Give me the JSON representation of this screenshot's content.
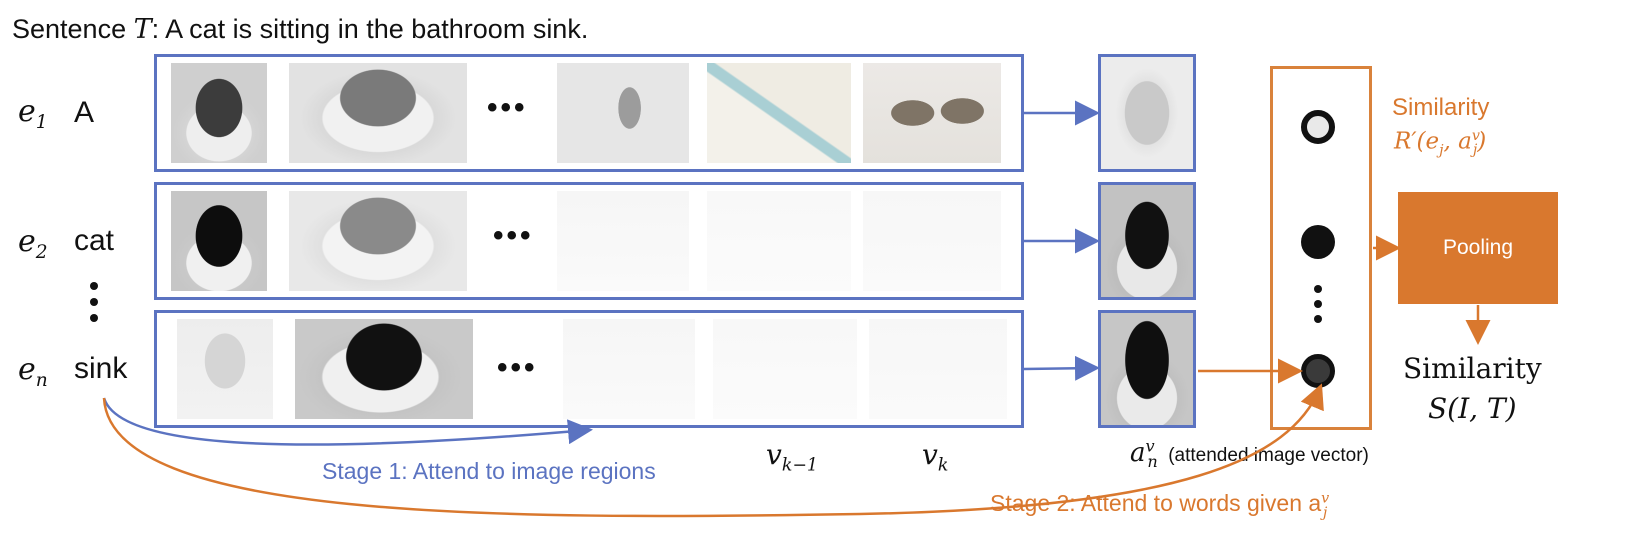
{
  "sentence": {
    "prefix": "Sentence ",
    "var": "T",
    "text": ": A cat is sitting in the bathroom sink."
  },
  "rows": [
    {
      "e_base": "e",
      "e_sub": "1",
      "word": "A"
    },
    {
      "e_base": "e",
      "e_sub": "2",
      "word": "cat"
    },
    {
      "e_base": "e",
      "e_sub": "n",
      "word": "sink"
    }
  ],
  "ellipsis": "•••",
  "region_labels": {
    "v_km1_base": "v",
    "v_km1_sub": "k−1",
    "v_k_base": "v",
    "v_k_sub": "k"
  },
  "attended": {
    "a_base": "a",
    "a_sup": "v",
    "a_sub": "n",
    "caption": "(attended image vector)"
  },
  "similarity_r": {
    "title": "Similarity",
    "formula_prefix": "R′(e",
    "formula_sub1": "j",
    "formula_mid": ", a",
    "formula_sup": "v",
    "formula_sub2": "j",
    "formula_suffix": ")"
  },
  "pooling": {
    "label": "Pooling"
  },
  "similarity_s": {
    "title": "Similarity",
    "formula": "S(I, T)"
  },
  "stage1": {
    "label": "Stage 1: Attend to image regions"
  },
  "stage2": {
    "label_prefix": "Stage 2: Attend to words given a",
    "sup": "v",
    "sub": "j"
  },
  "colors": {
    "blue": "#5b73c1",
    "orange": "#d9782e",
    "dark": "#111111"
  },
  "icons": [
    "cat-in-sink-image",
    "sink-image",
    "faucet-image",
    "toothpaste-image",
    "sunglasses-image"
  ]
}
